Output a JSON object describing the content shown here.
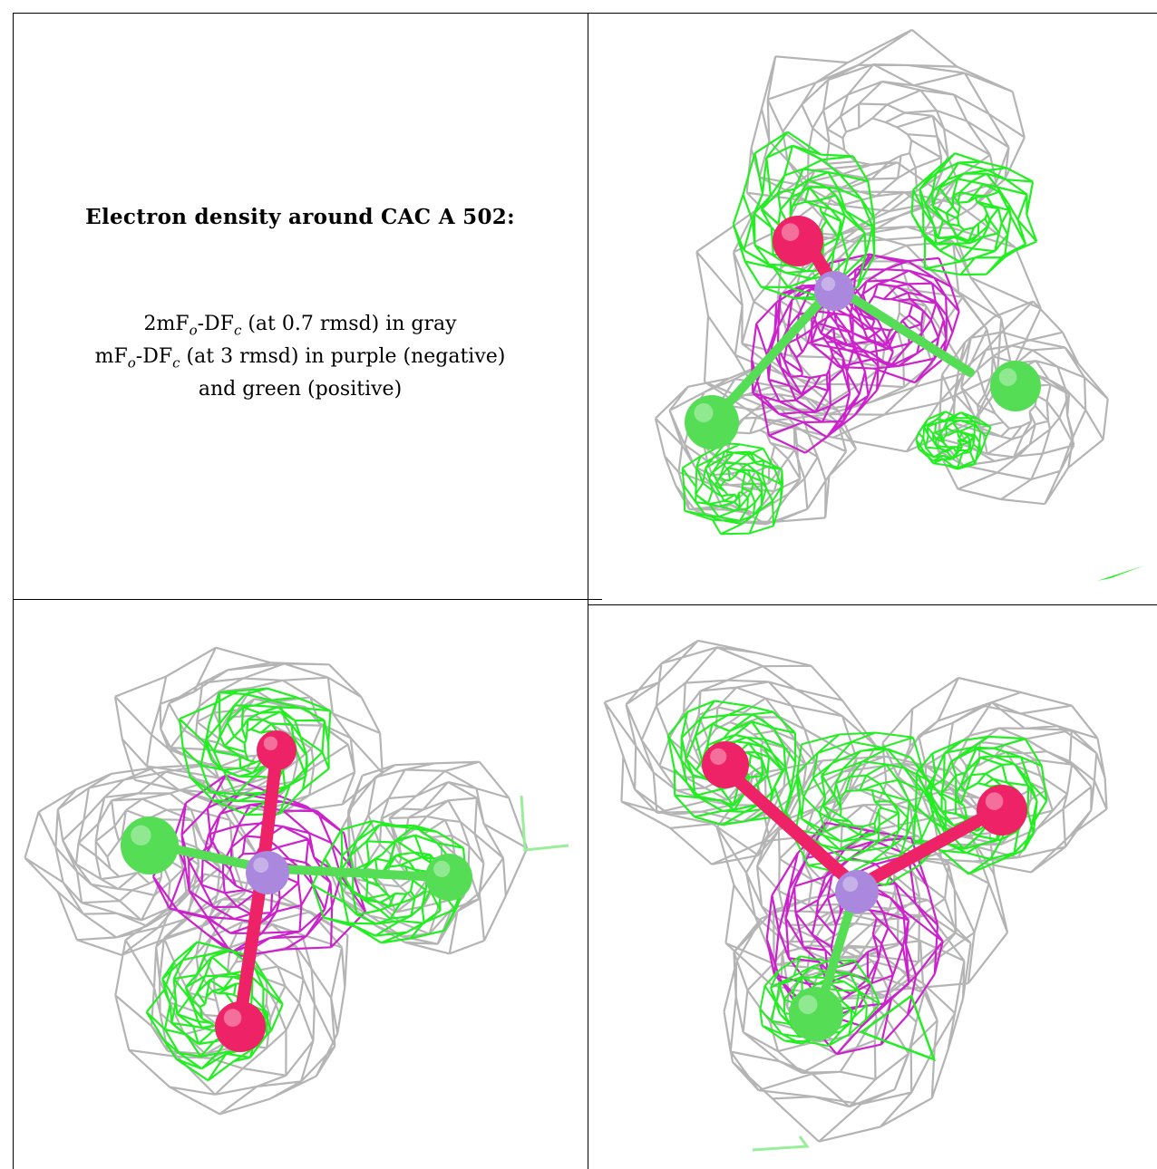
{
  "caption": {
    "title": "Electron density around CAC A 502:",
    "line1": {
      "a": "2mF",
      "a_sub": "o",
      "b": "-DF",
      "b_sub": "c",
      "rest": " (at 0.7 rmsd) in gray"
    },
    "line2": {
      "a": "mF",
      "a_sub": "o",
      "b": "-DF",
      "b_sub": "c",
      "rest": " (at 3 rmsd) in purple (negative)"
    },
    "line3": "and green (positive)"
  },
  "colors": {
    "gray_mesh": "#b4b4b4",
    "purple_mesh": "#cc22cc",
    "green_mesh": "#22ee22",
    "oxygen": "#ee2266",
    "chlorine": "#55dd55",
    "arsenic": "#aa88dd"
  },
  "panels": [
    {
      "id": "top-right",
      "view": "ligand density view 1"
    },
    {
      "id": "bottom-left",
      "view": "ligand density view 2"
    },
    {
      "id": "bottom-right",
      "view": "ligand density view 3"
    }
  ]
}
